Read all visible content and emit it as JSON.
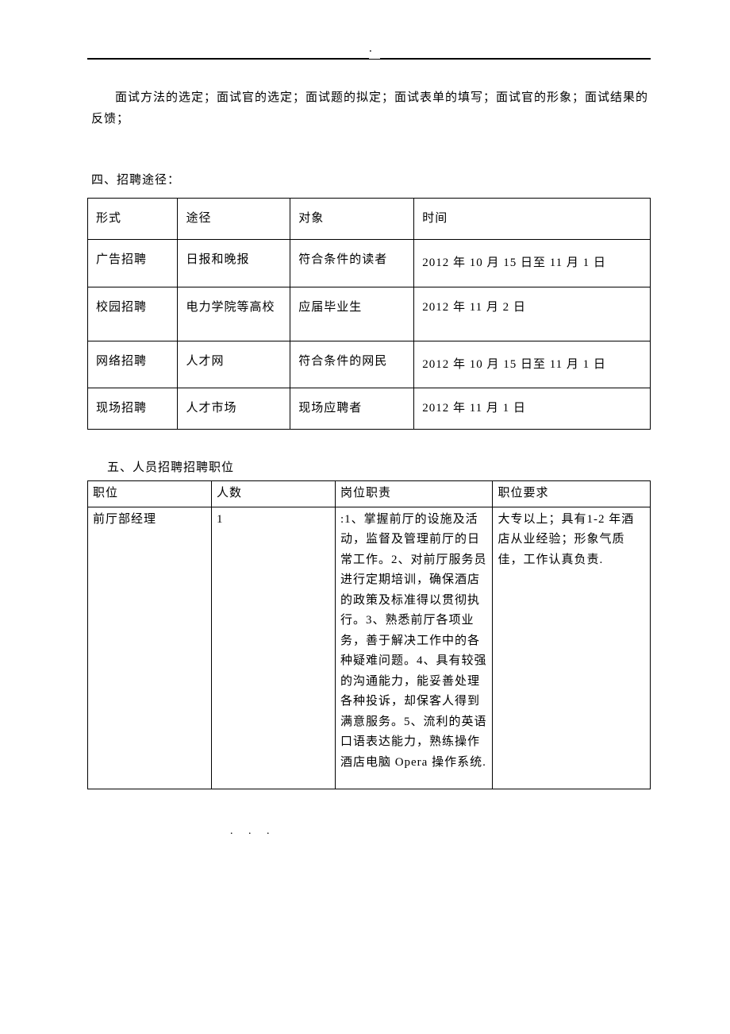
{
  "paragraph1": "面试方法的选定；面试官的选定；面试题的拟定；面试表单的填写；面试官的形象；面试结果的反馈；",
  "section4_title": "四、招聘途径：",
  "table1": {
    "headers": [
      "形式",
      "途径",
      "对象",
      "时间"
    ],
    "rows": [
      [
        "广告招聘",
        "日报和晚报",
        "符合条件的读者",
        "2012 年 10 月 15 日至 11 月 1 日"
      ],
      [
        "校园招聘",
        "电力学院等高校",
        "应届毕业生",
        "2012 年 11 月 2 日"
      ],
      [
        "网络招聘",
        "人才网",
        "符合条件的网民",
        "2012 年 10 月 15 日至 11 月 1 日"
      ],
      [
        "现场招聘",
        "人才市场",
        "现场应聘者",
        "2012 年 11 月 1 日"
      ]
    ]
  },
  "section5_title": "五、人员招聘招聘职位",
  "table2": {
    "headers": [
      "职位",
      "人数",
      "岗位职责",
      "职位要求"
    ],
    "rows": [
      {
        "position": "前厅部经理",
        "count": "1",
        "duties": ":1、掌握前厅的设施及活动，监督及管理前厅的日常工作。2、对前厅服务员进行定期培训，确保酒店的政策及标准得以贯彻执行。3、熟悉前厅各项业务，善于解决工作中的各种疑难问题。4、具有较强的沟通能力，能妥善处理各种投诉，却保客人得到满意服务。5、流利的英语口语表达能力，熟练操作酒店电脑 Opera 操作系统.",
        "requirements": "大专以上；具有1-2 年酒店从业经验；形象气质佳，工作认真负责."
      }
    ]
  },
  "footer": ". . ."
}
